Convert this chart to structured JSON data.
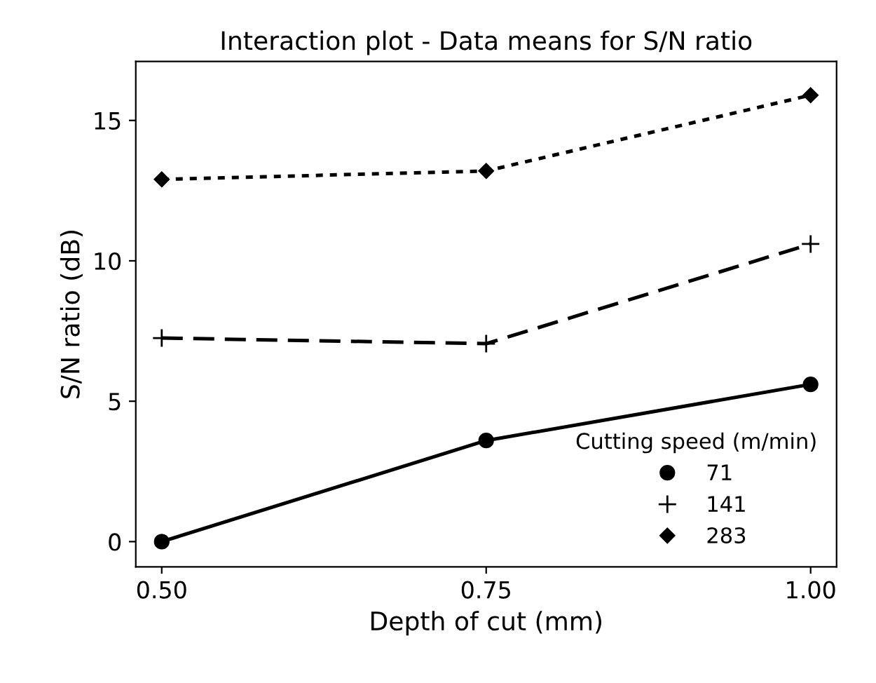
{
  "chart_data": {
    "type": "line",
    "title": "Interaction plot - Data means for S/N ratio",
    "xlabel": "Depth of cut (mm)",
    "ylabel": "S/N ratio (dB)",
    "legend_title": "Cutting speed (m/min)",
    "x": [
      0.5,
      0.75,
      1.0
    ],
    "series": [
      {
        "name": "71",
        "color": "#000000",
        "marker": "circle",
        "line_style": "solid",
        "values": [
          0,
          3.6,
          5.6
        ]
      },
      {
        "name": "141",
        "color": "#000000",
        "marker": "cross",
        "line_style": "dashed",
        "values": [
          7.25,
          7.05,
          10.6
        ]
      },
      {
        "name": "283",
        "color": "#000000",
        "marker": "diamond",
        "line_style": "dotted",
        "values": [
          12.9,
          13.2,
          15.9
        ]
      }
    ],
    "xlim": [
      0.48,
      1.02
    ],
    "ylim": [
      -0.9,
      17.1
    ],
    "xticks": [
      {
        "value": 0.5,
        "label": "0.50"
      },
      {
        "value": 0.75,
        "label": "0.75"
      },
      {
        "value": 1.0,
        "label": "1.00"
      }
    ],
    "yticks": [
      0,
      5,
      10,
      15
    ],
    "grid": false,
    "legend": "bottom right"
  }
}
